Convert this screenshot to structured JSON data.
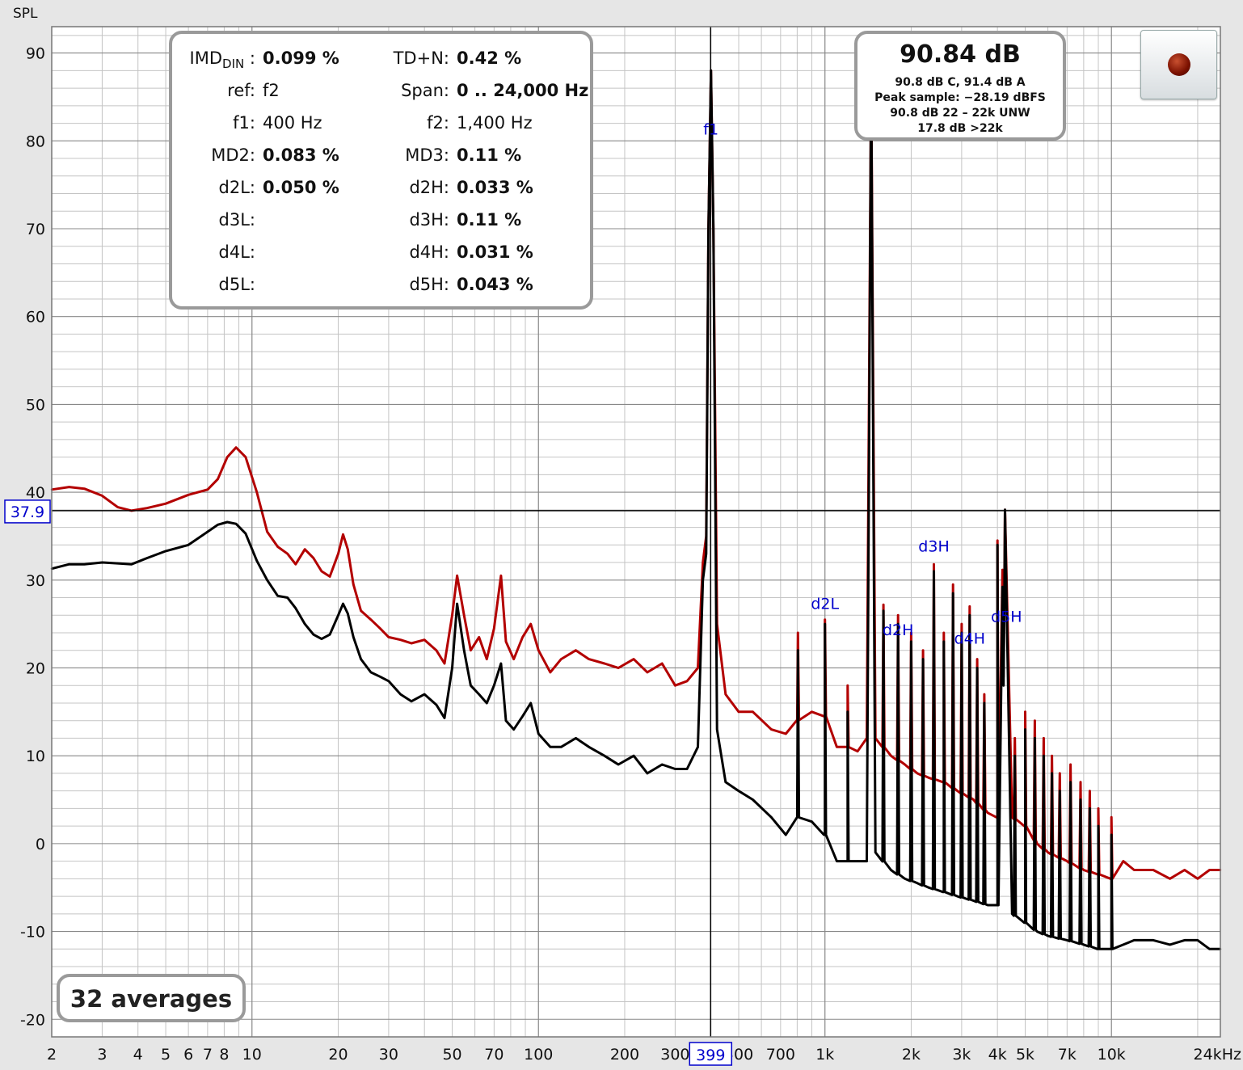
{
  "chart_data": {
    "type": "line",
    "ylabel": "SPL",
    "x_scale": "log",
    "xlim": [
      2,
      24000
    ],
    "ylim": [
      -22,
      93
    ],
    "y_ticks": [
      90,
      80,
      70,
      60,
      50,
      40,
      30,
      20,
      10,
      0,
      -10,
      -20
    ],
    "x_ticks": [
      {
        "v": 2,
        "label": "2"
      },
      {
        "v": 3,
        "label": "3"
      },
      {
        "v": 4,
        "label": "4"
      },
      {
        "v": 5,
        "label": "5"
      },
      {
        "v": 6,
        "label": "6"
      },
      {
        "v": 7,
        "label": "7"
      },
      {
        "v": 8,
        "label": "8"
      },
      {
        "v": 10,
        "label": "10"
      },
      {
        "v": 20,
        "label": "20"
      },
      {
        "v": 30,
        "label": "30"
      },
      {
        "v": 50,
        "label": "50"
      },
      {
        "v": 70,
        "label": "70"
      },
      {
        "v": 100,
        "label": "100"
      },
      {
        "v": 200,
        "label": "200"
      },
      {
        "v": 300,
        "label": "300"
      },
      {
        "v": 500,
        "label": "500"
      },
      {
        "v": 700,
        "label": "700"
      },
      {
        "v": 1000,
        "label": "1k"
      },
      {
        "v": 2000,
        "label": "2k"
      },
      {
        "v": 3000,
        "label": "3k"
      },
      {
        "v": 4000,
        "label": "4k"
      },
      {
        "v": 5000,
        "label": "5k"
      },
      {
        "v": 7000,
        "label": "7k"
      },
      {
        "v": 10000,
        "label": "10k"
      },
      {
        "v": 24000,
        "label": "24kHz"
      }
    ],
    "cursor": {
      "x": 399,
      "x_label": "399",
      "y": 37.9,
      "y_label": "37.9"
    },
    "series": [
      {
        "color": "#b30000",
        "points": [
          [
            2,
            40.3
          ],
          [
            2.3,
            40.6
          ],
          [
            2.6,
            40.4
          ],
          [
            3,
            39.6
          ],
          [
            3.4,
            38.3
          ],
          [
            3.8,
            37.9
          ],
          [
            4.3,
            38.2
          ],
          [
            5,
            38.7
          ],
          [
            6,
            39.7
          ],
          [
            7,
            40.3
          ],
          [
            7.6,
            41.5
          ],
          [
            8.2,
            44
          ],
          [
            8.8,
            45.1
          ],
          [
            9.5,
            44
          ],
          [
            10.4,
            40
          ],
          [
            11.3,
            35.5
          ],
          [
            12.3,
            33.8
          ],
          [
            13.3,
            33
          ],
          [
            14.2,
            31.8
          ],
          [
            15.3,
            33.5
          ],
          [
            16.4,
            32.5
          ],
          [
            17.5,
            31
          ],
          [
            18.7,
            30.4
          ],
          [
            20,
            33
          ],
          [
            20.8,
            35.2
          ],
          [
            21.6,
            33.5
          ],
          [
            22.6,
            29.5
          ],
          [
            24,
            26.5
          ],
          [
            26,
            25.5
          ],
          [
            28,
            24.5
          ],
          [
            30,
            23.5
          ],
          [
            33,
            23.2
          ],
          [
            36,
            22.8
          ],
          [
            40,
            23.2
          ],
          [
            44,
            22
          ],
          [
            47,
            20.5
          ],
          [
            50,
            26
          ],
          [
            52,
            30.5
          ],
          [
            55,
            26
          ],
          [
            58,
            22
          ],
          [
            62,
            23.5
          ],
          [
            66,
            21
          ],
          [
            70,
            24.5
          ],
          [
            74,
            30.5
          ],
          [
            77,
            23
          ],
          [
            82,
            21
          ],
          [
            88,
            23.5
          ],
          [
            94,
            25
          ],
          [
            100,
            22
          ],
          [
            110,
            19.5
          ],
          [
            120,
            21
          ],
          [
            135,
            22
          ],
          [
            150,
            21
          ],
          [
            170,
            20.5
          ],
          [
            190,
            20
          ],
          [
            215,
            21
          ],
          [
            240,
            19.5
          ],
          [
            270,
            20.5
          ],
          [
            300,
            18
          ],
          [
            330,
            18.5
          ],
          [
            360,
            20
          ],
          [
            375,
            32
          ],
          [
            385,
            35
          ],
          [
            392,
            70
          ],
          [
            400,
            88
          ],
          [
            408,
            70
          ],
          [
            420,
            25
          ],
          [
            450,
            17
          ],
          [
            500,
            15
          ],
          [
            560,
            15
          ],
          [
            650,
            13
          ],
          [
            730,
            12.5
          ],
          [
            800,
            14
          ],
          [
            900,
            15
          ],
          [
            1000,
            14.5
          ],
          [
            1100,
            11
          ],
          [
            1200,
            11
          ],
          [
            1300,
            10.5
          ],
          [
            1400,
            12
          ],
          [
            1450,
            88
          ],
          [
            1500,
            12
          ],
          [
            1700,
            10
          ],
          [
            1900,
            9
          ],
          [
            2100,
            8
          ],
          [
            2300,
            7.5
          ],
          [
            2600,
            7
          ],
          [
            2900,
            6
          ],
          [
            3300,
            5
          ],
          [
            3700,
            3.5
          ],
          [
            4000,
            3
          ],
          [
            4250,
            38
          ],
          [
            4500,
            3
          ],
          [
            5000,
            2
          ],
          [
            5500,
            0
          ],
          [
            6000,
            -1
          ],
          [
            7000,
            -2
          ],
          [
            8000,
            -3
          ],
          [
            9000,
            -3.5
          ],
          [
            10000,
            -4
          ],
          [
            11000,
            -2
          ],
          [
            12000,
            -3
          ],
          [
            14000,
            -3
          ],
          [
            16000,
            -4
          ],
          [
            18000,
            -3
          ],
          [
            20000,
            -4
          ],
          [
            22000,
            -3
          ],
          [
            24000,
            -3
          ]
        ],
        "peaks": [
          [
            805,
            24
          ],
          [
            1000,
            25.5
          ],
          [
            1200,
            18
          ],
          [
            1600,
            27.2
          ],
          [
            1800,
            26
          ],
          [
            2000,
            24
          ],
          [
            2200,
            22
          ],
          [
            2400,
            31.8
          ],
          [
            2600,
            24
          ],
          [
            2800,
            29.5
          ],
          [
            3000,
            25
          ],
          [
            3200,
            27
          ],
          [
            3400,
            21
          ],
          [
            3600,
            17
          ],
          [
            4000,
            34.5
          ],
          [
            4200,
            19
          ],
          [
            4600,
            12
          ],
          [
            5000,
            15
          ],
          [
            5400,
            14
          ],
          [
            5800,
            12
          ],
          [
            6200,
            10
          ],
          [
            6600,
            8
          ],
          [
            7200,
            9
          ],
          [
            7800,
            7
          ],
          [
            8400,
            6
          ],
          [
            9000,
            4
          ],
          [
            10000,
            3
          ]
        ]
      },
      {
        "color": "#000000",
        "points": [
          [
            2,
            31.3
          ],
          [
            2.3,
            31.8
          ],
          [
            2.6,
            31.8
          ],
          [
            3,
            32
          ],
          [
            3.4,
            31.9
          ],
          [
            3.8,
            31.8
          ],
          [
            4.3,
            32.5
          ],
          [
            5,
            33.3
          ],
          [
            6,
            34
          ],
          [
            7,
            35.5
          ],
          [
            7.6,
            36.3
          ],
          [
            8.2,
            36.6
          ],
          [
            8.8,
            36.4
          ],
          [
            9.5,
            35.3
          ],
          [
            10.4,
            32.2
          ],
          [
            11.3,
            30
          ],
          [
            12.3,
            28.2
          ],
          [
            13.3,
            28
          ],
          [
            14.2,
            26.8
          ],
          [
            15.3,
            25
          ],
          [
            16.4,
            23.8
          ],
          [
            17.5,
            23.3
          ],
          [
            18.7,
            23.8
          ],
          [
            20,
            26
          ],
          [
            20.8,
            27.3
          ],
          [
            21.6,
            26.2
          ],
          [
            22.6,
            23.5
          ],
          [
            24,
            21
          ],
          [
            26,
            19.5
          ],
          [
            28,
            19
          ],
          [
            30,
            18.5
          ],
          [
            33,
            17
          ],
          [
            36,
            16.2
          ],
          [
            40,
            17
          ],
          [
            44,
            15.8
          ],
          [
            47,
            14.3
          ],
          [
            50,
            20
          ],
          [
            52,
            27.3
          ],
          [
            55,
            22
          ],
          [
            58,
            18
          ],
          [
            62,
            17
          ],
          [
            66,
            16
          ],
          [
            70,
            18
          ],
          [
            74,
            20.5
          ],
          [
            77,
            14
          ],
          [
            82,
            13
          ],
          [
            88,
            14.5
          ],
          [
            94,
            16
          ],
          [
            100,
            12.5
          ],
          [
            110,
            11
          ],
          [
            120,
            11
          ],
          [
            135,
            12
          ],
          [
            150,
            11
          ],
          [
            170,
            10
          ],
          [
            190,
            9
          ],
          [
            215,
            10
          ],
          [
            240,
            8
          ],
          [
            270,
            9
          ],
          [
            300,
            8.5
          ],
          [
            330,
            8.5
          ],
          [
            360,
            11
          ],
          [
            375,
            30
          ],
          [
            385,
            33
          ],
          [
            392,
            70
          ],
          [
            400,
            88
          ],
          [
            408,
            70
          ],
          [
            420,
            13
          ],
          [
            450,
            7
          ],
          [
            500,
            6
          ],
          [
            560,
            5
          ],
          [
            650,
            3
          ],
          [
            730,
            1
          ],
          [
            800,
            3
          ],
          [
            900,
            2.5
          ],
          [
            1000,
            1
          ],
          [
            1100,
            -2
          ],
          [
            1200,
            -2
          ],
          [
            1300,
            -2
          ],
          [
            1400,
            -2
          ],
          [
            1450,
            88
          ],
          [
            1500,
            -1
          ],
          [
            1700,
            -3
          ],
          [
            1900,
            -4
          ],
          [
            2100,
            -4.5
          ],
          [
            2300,
            -5
          ],
          [
            2600,
            -5.5
          ],
          [
            2900,
            -6
          ],
          [
            3300,
            -6.5
          ],
          [
            3700,
            -7
          ],
          [
            4000,
            -7
          ],
          [
            4250,
            38
          ],
          [
            4500,
            -8
          ],
          [
            5000,
            -9
          ],
          [
            5500,
            -10
          ],
          [
            6000,
            -10.5
          ],
          [
            7000,
            -11
          ],
          [
            8000,
            -11.5
          ],
          [
            9000,
            -12
          ],
          [
            10000,
            -12
          ],
          [
            11000,
            -11.5
          ],
          [
            12000,
            -11
          ],
          [
            14000,
            -11
          ],
          [
            16000,
            -11.5
          ],
          [
            18000,
            -11
          ],
          [
            20000,
            -11
          ],
          [
            22000,
            -12
          ],
          [
            24000,
            -12
          ]
        ],
        "peaks": [
          [
            805,
            22
          ],
          [
            1000,
            25
          ],
          [
            1200,
            15
          ],
          [
            1600,
            26.5
          ],
          [
            1800,
            25
          ],
          [
            2000,
            23
          ],
          [
            2200,
            21
          ],
          [
            2400,
            31
          ],
          [
            2600,
            23
          ],
          [
            2800,
            28.5
          ],
          [
            3000,
            24
          ],
          [
            3200,
            26
          ],
          [
            3400,
            20
          ],
          [
            3600,
            16
          ],
          [
            4000,
            34
          ],
          [
            4200,
            18
          ],
          [
            4600,
            10
          ],
          [
            5000,
            13
          ],
          [
            5400,
            12
          ],
          [
            5800,
            10
          ],
          [
            6200,
            8
          ],
          [
            6600,
            6
          ],
          [
            7200,
            7
          ],
          [
            7800,
            5
          ],
          [
            8400,
            4
          ],
          [
            9000,
            2
          ],
          [
            10000,
            1
          ]
        ]
      }
    ],
    "annotations": [
      {
        "label": "f1",
        "x": 400,
        "y": 80
      },
      {
        "label": "d2L",
        "x": 1000,
        "y": 26
      },
      {
        "label": "d2H",
        "x": 1800,
        "y": 23
      },
      {
        "label": "d3H",
        "x": 2400,
        "y": 32.5
      },
      {
        "label": "d4H",
        "x": 3200,
        "y": 22
      },
      {
        "label": "d5H",
        "x": 4300,
        "y": 24.5
      }
    ]
  },
  "imd_panel": {
    "rows": [
      {
        "l_label": "IMD",
        "l_sub": "DIN",
        "l_value": "0.099 %",
        "r_label": "TD+N:",
        "r_value": "0.42 %",
        "l_bold": true,
        "r_bold": true
      },
      {
        "l_label": "ref:",
        "l_value": "f2",
        "r_label": "Span:",
        "r_value": "0 .. 24,000 Hz",
        "l_bold": false,
        "r_bold": true
      },
      {
        "l_label": "f1:",
        "l_value": "400 Hz",
        "r_label": "f2:",
        "r_value": "1,400 Hz",
        "l_bold": false,
        "r_bold": false
      },
      {
        "l_label": "MD2:",
        "l_value": "0.083 %",
        "r_label": "MD3:",
        "r_value": "0.11 %",
        "l_bold": true,
        "r_bold": true
      },
      {
        "l_label": "d2L:",
        "l_value": "0.050 %",
        "r_label": "d2H:",
        "r_value": "0.033 %",
        "l_bold": true,
        "r_bold": true
      },
      {
        "l_label": "d3L:",
        "l_value": "",
        "r_label": "d3H:",
        "r_value": "0.11 %",
        "l_bold": true,
        "r_bold": true
      },
      {
        "l_label": "d4L:",
        "l_value": "",
        "r_label": "d4H:",
        "r_value": "0.031 %",
        "l_bold": true,
        "r_bold": true
      },
      {
        "l_label": "d5L:",
        "l_value": "",
        "r_label": "d5H:",
        "r_value": "0.043 %",
        "l_bold": true,
        "r_bold": true
      }
    ]
  },
  "level_panel": {
    "main": "90.84 dB",
    "lines": [
      "90.8 dB C, 91.4 dB A",
      "Peak sample: −28.19 dBFS",
      "90.8 dB 22 – 22k UNW",
      "17.8 dB >22k"
    ]
  },
  "averages_label": "32 averages",
  "colors": {
    "background": "#e6e6e6",
    "grid_major": "#888888",
    "grid_minor": "#c4c4c4",
    "annotation": "#0000cc"
  }
}
